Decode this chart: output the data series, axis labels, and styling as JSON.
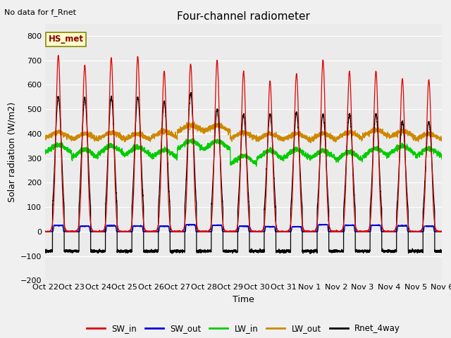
{
  "title": "Four-channel radiometer",
  "top_left_text": "No data for f_Rnet",
  "station_label": "HS_met",
  "ylabel": "Solar radiation (W/m2)",
  "xlabel": "Time",
  "ylim": [
    -200,
    850
  ],
  "yticks": [
    -200,
    -100,
    0,
    100,
    200,
    300,
    400,
    500,
    600,
    700,
    800
  ],
  "xtick_labels": [
    "Oct 22",
    "Oct 23",
    "Oct 24",
    "Oct 25",
    "Oct 26",
    "Oct 27",
    "Oct 28",
    "Oct 29",
    "Oct 30",
    "Oct 31",
    "Nov 1",
    "Nov 2",
    "Nov 3",
    "Nov 4",
    "Nov 5",
    "Nov 6"
  ],
  "colors": {
    "SW_in": "#dd0000",
    "SW_out": "#0000dd",
    "LW_in": "#00cc00",
    "LW_out": "#cc8800",
    "Rnet_4way": "#000000"
  },
  "background_color": "#f0f0f0",
  "plot_bg_color": "#ebebeb",
  "n_days": 15,
  "pts_per_day": 288,
  "SW_in_peaks": [
    720,
    680,
    710,
    715,
    655,
    685,
    700,
    655,
    615,
    645,
    700,
    655,
    655,
    625,
    620
  ],
  "SW_out_peaks": [
    25,
    22,
    24,
    23,
    22,
    28,
    26,
    22,
    20,
    20,
    28,
    26,
    26,
    24,
    22
  ],
  "LW_in_base": [
    315,
    295,
    310,
    305,
    295,
    330,
    330,
    270,
    290,
    295,
    290,
    285,
    300,
    310,
    300
  ],
  "LW_out_base": [
    375,
    370,
    375,
    370,
    380,
    405,
    405,
    375,
    370,
    370,
    370,
    375,
    385,
    380,
    370
  ],
  "Rnet_peaks": [
    550,
    545,
    550,
    550,
    530,
    565,
    500,
    480,
    480,
    485,
    480,
    480,
    480,
    450,
    450
  ],
  "day_start": 0.28,
  "day_end": 0.72
}
